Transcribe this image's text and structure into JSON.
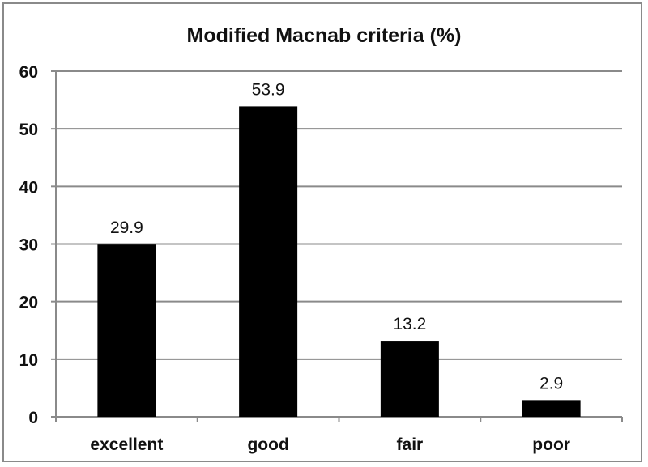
{
  "chart_data": {
    "type": "bar",
    "title": "Modified Macnab criteria (%)",
    "categories": [
      "excellent",
      "good",
      "fair",
      "poor"
    ],
    "values": [
      29.9,
      53.9,
      13.2,
      2.9
    ],
    "data_labels": [
      "29.9",
      "53.9",
      "13.2",
      "2.9"
    ],
    "xlabel": "",
    "ylabel": "",
    "ylim": [
      0,
      60
    ],
    "yticks": [
      0,
      10,
      20,
      30,
      40,
      50,
      60
    ],
    "grid": true,
    "legend": null,
    "bar_color": "#000000",
    "grid_color": "#8a8a8a"
  }
}
